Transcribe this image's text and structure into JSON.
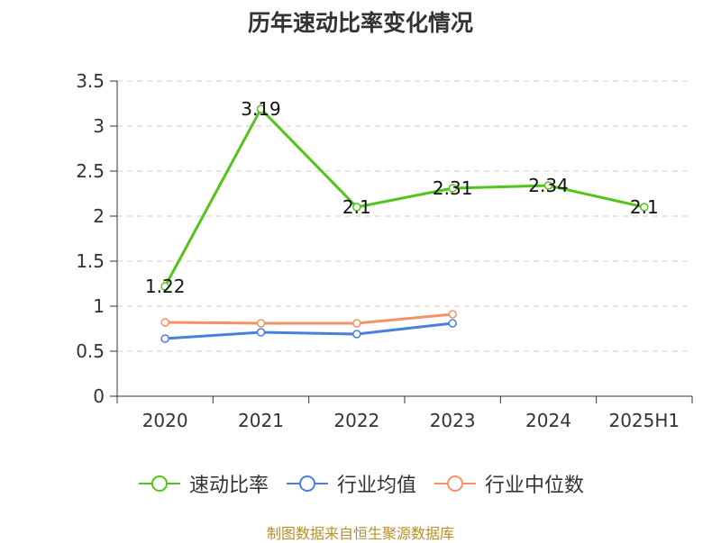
{
  "chart_data": {
    "type": "line",
    "title": "历年速动比率变化情况",
    "categories": [
      "2020",
      "2021",
      "2022",
      "2023",
      "2024",
      "2025H1"
    ],
    "ylim": [
      0,
      3.5
    ],
    "yticks": [
      "0",
      "0.5",
      "1",
      "1.5",
      "2",
      "2.5",
      "3",
      "3.5"
    ],
    "grid": true,
    "legend_position": "bottom",
    "series": [
      {
        "name": "速动比率",
        "color": "#52c41a",
        "values": [
          1.22,
          3.19,
          2.1,
          2.31,
          2.34,
          2.1
        ],
        "data_labels": [
          "1.22",
          "3.19",
          "2.1",
          "2.31",
          "2.34",
          "2.1"
        ]
      },
      {
        "name": "行业均值",
        "color": "#4a7fdc",
        "values": [
          0.64,
          0.71,
          0.69,
          0.81,
          null,
          null
        ]
      },
      {
        "name": "行业中位数",
        "color": "#f59162",
        "values": [
          0.82,
          0.81,
          0.81,
          0.91,
          null,
          null
        ]
      }
    ]
  },
  "footer": {
    "source": "制图数据来自恒生聚源数据库"
  }
}
